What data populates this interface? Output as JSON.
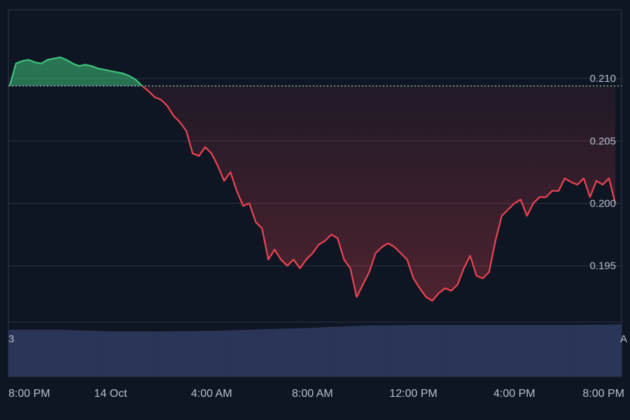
{
  "chart_data": {
    "type": "area",
    "title": "",
    "xlabel": "",
    "ylabel": "",
    "baseline": 0.2094,
    "ylim": [
      0.1905,
      0.2155
    ],
    "xlim": [
      -0.05,
      24.25
    ],
    "grid": true,
    "y_ticks": [
      {
        "v": 0.21,
        "label": "0.210"
      },
      {
        "v": 0.205,
        "label": "0.205"
      },
      {
        "v": 0.2,
        "label": "0.200"
      },
      {
        "v": 0.195,
        "label": "0.195"
      }
    ],
    "x_ticks": [
      {
        "v": 0.75,
        "label": "8:00 PM"
      },
      {
        "v": 4.0,
        "label": "14 Oct"
      },
      {
        "v": 8.0,
        "label": "4:00 AM"
      },
      {
        "v": 12.0,
        "label": "8:00 AM"
      },
      {
        "v": 16.0,
        "label": "12:00 PM"
      },
      {
        "v": 20.0,
        "label": "4:00 PM"
      },
      {
        "v": 24.0,
        "label": "8:00 PM"
      }
    ],
    "series": [
      {
        "x": [
          0.0,
          0.25,
          0.5,
          0.75,
          1.0,
          1.25,
          1.5,
          1.75,
          2.0,
          2.25,
          2.5,
          2.75,
          3.0,
          3.25,
          3.5,
          3.75,
          4.0,
          4.25,
          4.5,
          4.75,
          5.0,
          5.25,
          5.5,
          5.75,
          6.0,
          6.25,
          6.5,
          6.75,
          7.0,
          7.25,
          7.5,
          7.75,
          8.0,
          8.25,
          8.5,
          8.75,
          9.0,
          9.25,
          9.5,
          9.75,
          10.0,
          10.25,
          10.5,
          10.75,
          11.0,
          11.25,
          11.5,
          11.75,
          12.0,
          12.25,
          12.5,
          12.75,
          13.0,
          13.25,
          13.5,
          13.75,
          14.0,
          14.25,
          14.5,
          14.75,
          15.0,
          15.25,
          15.5,
          15.75,
          16.0,
          16.25,
          16.5,
          16.75,
          17.0,
          17.25,
          17.5,
          17.75,
          18.0,
          18.25,
          18.5,
          18.75,
          19.0,
          19.25,
          19.5,
          19.75,
          20.0,
          20.25,
          20.5,
          20.75,
          21.0,
          21.25,
          21.5,
          21.75,
          22.0,
          22.25,
          22.5,
          22.75,
          23.0,
          23.25,
          23.5,
          23.75,
          24.0
        ],
        "y": [
          0.2094,
          0.2112,
          0.2114,
          0.2115,
          0.2113,
          0.2112,
          0.2115,
          0.2116,
          0.2117,
          0.2115,
          0.2112,
          0.211,
          0.2111,
          0.211,
          0.2108,
          0.2107,
          0.2106,
          0.2105,
          0.2104,
          0.2102,
          0.2099,
          0.2094,
          0.209,
          0.2085,
          0.2083,
          0.2078,
          0.207,
          0.2065,
          0.2058,
          0.204,
          0.2038,
          0.2045,
          0.204,
          0.203,
          0.2018,
          0.2025,
          0.201,
          0.1998,
          0.2,
          0.1985,
          0.198,
          0.1955,
          0.1963,
          0.1955,
          0.195,
          0.1955,
          0.1948,
          0.1955,
          0.196,
          0.1967,
          0.197,
          0.1975,
          0.1972,
          0.1955,
          0.1948,
          0.1925,
          0.1935,
          0.1945,
          0.196,
          0.1965,
          0.1968,
          0.1965,
          0.196,
          0.1955,
          0.194,
          0.1932,
          0.1925,
          0.1922,
          0.1928,
          0.1932,
          0.193,
          0.1935,
          0.1948,
          0.1958,
          0.1942,
          0.194,
          0.1945,
          0.197,
          0.199,
          0.1995,
          0.2,
          0.2003,
          0.199,
          0.2,
          0.2005,
          0.2005,
          0.201,
          0.201,
          0.202,
          0.2017,
          0.2015,
          0.202,
          0.2005,
          0.2018,
          0.2015,
          0.202,
          0.2
        ]
      }
    ],
    "volume": {
      "x": [
        0,
        2,
        4,
        6,
        8,
        10,
        12,
        14,
        16,
        18,
        20,
        22,
        24
      ],
      "v": [
        0.88,
        0.88,
        0.85,
        0.85,
        0.86,
        0.89,
        0.92,
        0.96,
        0.97,
        0.97,
        0.97,
        0.97,
        0.98
      ],
      "left_label": "3",
      "right_label": "A"
    },
    "colors": {
      "up": "#3ec47c",
      "down": "#ef4352",
      "volume": "#2b3558",
      "volume_edge": "#37446e",
      "background": "#0f1623",
      "grid": "#2a3444",
      "baseline": "#c9d0db"
    }
  }
}
